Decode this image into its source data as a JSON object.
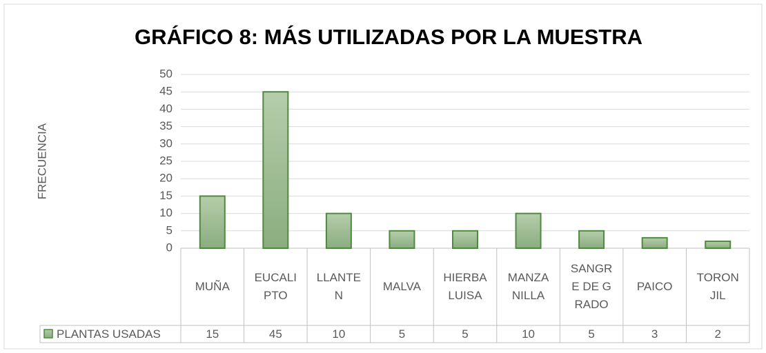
{
  "chart_data": {
    "type": "bar",
    "title": "GRÁFICO 8: MÁS UTILIZADAS POR LA MUESTRA",
    "y_label": "FRECUENCIA",
    "categories": [
      "MUÑA",
      "EUCALIPTO",
      "LLANTEN",
      "MALVA",
      "HIERBA LUISA",
      "MANZANILLA",
      "SANGRE DE GRADO",
      "PAICO",
      "TORONJIL"
    ],
    "series": [
      {
        "name": "PLANTAS USADAS",
        "color": "#9dbc92",
        "values": [
          15,
          45,
          10,
          5,
          5,
          10,
          5,
          3,
          2
        ]
      }
    ],
    "ylim": [
      0,
      50
    ],
    "yticks": [
      0,
      5,
      10,
      15,
      20,
      25,
      30,
      35,
      40,
      45,
      50
    ],
    "grid": true,
    "data_table": true
  }
}
